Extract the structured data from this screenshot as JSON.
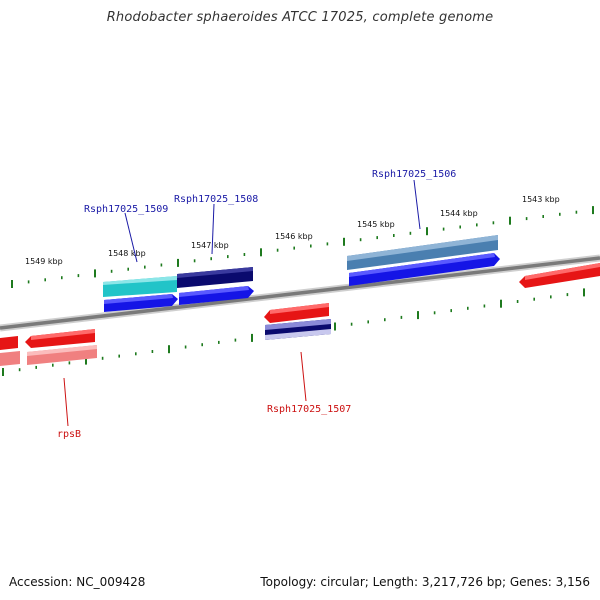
{
  "title": "Rhodobacter sphaeroides ATCC 17025, complete genome",
  "footer": {
    "accession": "Accession: NC_009428",
    "summary": "Topology: circular; Length: 3,217,726 bp; Genes: 3,156"
  },
  "kbp_labels": [
    "1549 kbp",
    "1548 kbp",
    "1547 kbp",
    "1546 kbp",
    "1545 kbp",
    "1544 kbp",
    "1543 kbp"
  ],
  "gene_labels": {
    "g1509": "Rsph17025_1509",
    "g1508": "Rsph17025_1508",
    "g1506": "Rsph17025_1506",
    "g1507": "Rsph17025_1507",
    "rpsB": "rpsB"
  },
  "colors": {
    "backbone": "#808080",
    "tick": "#1e7a1e",
    "forward_label": "#1a1aa6",
    "reverse_label": "#cc1111",
    "cds_blue": "#1515e6",
    "cds_red": "#e61515",
    "cyan": "#22c4c8",
    "navy": "#0a0a6e",
    "steel": "#4a7fb0",
    "pink": "#f08080",
    "lavender": "#8a8ad8"
  }
}
